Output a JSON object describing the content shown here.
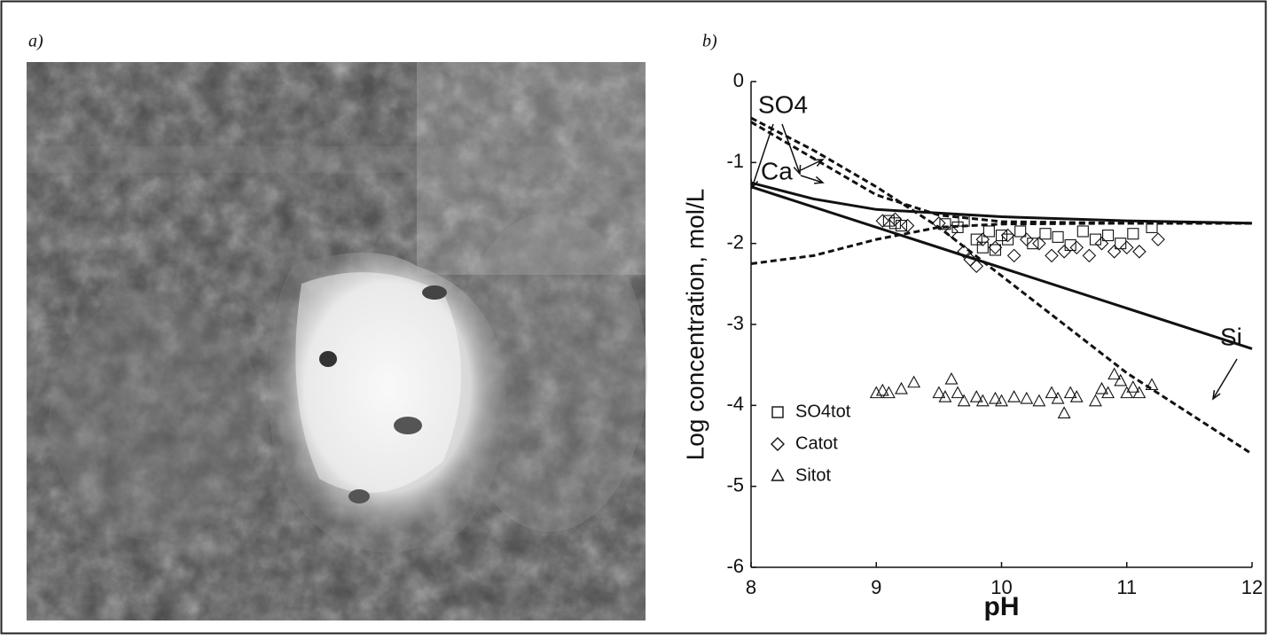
{
  "panel_labels": {
    "a": "a)",
    "b": "b)"
  },
  "chart_data": {
    "type": "scatter",
    "x_label": "pH",
    "y_label": "Log concentration, mol/L",
    "xlim": [
      8,
      12
    ],
    "xticks": [
      8,
      9,
      10,
      11,
      12
    ],
    "ylim": [
      -6,
      0
    ],
    "yticks": [
      -6,
      -5,
      -4,
      -3,
      -2,
      -1,
      0
    ],
    "color": "#111111",
    "legend": "lower left",
    "annotations": [
      "SO4",
      "Ca",
      "Si"
    ],
    "series": [
      {
        "name": "SO4tot",
        "marker": "square",
        "x": [
          9.1,
          9.15,
          9.2,
          9.55,
          9.65,
          9.7,
          9.8,
          9.85,
          9.9,
          9.95,
          10.0,
          10.05,
          10.15,
          10.25,
          10.35,
          10.45,
          10.55,
          10.65,
          10.75,
          10.85,
          10.95,
          11.05,
          11.2
        ],
        "values": [
          -1.72,
          -1.75,
          -1.78,
          -1.76,
          -1.8,
          -1.72,
          -1.95,
          -2.05,
          -1.85,
          -2.08,
          -1.9,
          -1.95,
          -1.85,
          -2.0,
          -1.88,
          -1.92,
          -2.02,
          -1.85,
          -1.95,
          -1.9,
          -2.0,
          -1.88,
          -1.8
        ]
      },
      {
        "name": "Catot",
        "marker": "diamond",
        "x": [
          9.05,
          9.15,
          9.25,
          9.5,
          9.6,
          9.7,
          9.75,
          9.8,
          9.85,
          9.95,
          10.05,
          10.1,
          10.2,
          10.3,
          10.4,
          10.5,
          10.6,
          10.7,
          10.8,
          10.9,
          11.0,
          11.1,
          11.25
        ],
        "values": [
          -1.72,
          -1.7,
          -1.78,
          -1.75,
          -1.85,
          -2.1,
          -2.2,
          -2.28,
          -1.95,
          -2.05,
          -1.9,
          -2.15,
          -1.95,
          -2.0,
          -2.15,
          -2.1,
          -2.05,
          -2.15,
          -2.0,
          -2.1,
          -2.05,
          -2.1,
          -1.95
        ]
      },
      {
        "name": "Sitot",
        "marker": "triangle",
        "x": [
          9.0,
          9.05,
          9.1,
          9.2,
          9.3,
          9.5,
          9.55,
          9.6,
          9.65,
          9.7,
          9.8,
          9.85,
          9.95,
          10.0,
          10.1,
          10.2,
          10.3,
          10.4,
          10.45,
          10.5,
          10.55,
          10.6,
          10.75,
          10.8,
          10.85,
          10.9,
          10.95,
          11.0,
          11.05,
          11.1,
          11.2
        ],
        "values": [
          -3.85,
          -3.82,
          -3.85,
          -3.8,
          -3.72,
          -3.85,
          -3.9,
          -3.68,
          -3.85,
          -3.95,
          -3.9,
          -3.95,
          -3.92,
          -3.95,
          -3.9,
          -3.92,
          -3.95,
          -3.85,
          -3.92,
          -4.1,
          -3.85,
          -3.9,
          -3.95,
          -3.8,
          -3.85,
          -3.62,
          -3.7,
          -3.85,
          -3.78,
          -3.85,
          -3.75
        ]
      },
      {
        "line_style": "dashed",
        "x": [
          8,
          8.5,
          9,
          9.5,
          10,
          11,
          12
        ],
        "values": [
          -0.5,
          -0.95,
          -1.4,
          -1.65,
          -1.73,
          -1.75,
          -1.75
        ]
      },
      {
        "line_style": "dashed",
        "x": [
          8,
          8.5,
          9,
          9.5,
          10,
          10.5,
          11,
          11.5,
          12
        ],
        "values": [
          -0.45,
          -0.85,
          -1.3,
          -1.8,
          -2.4,
          -3.0,
          -3.6,
          -4.1,
          -4.6
        ]
      },
      {
        "line_style": "dashed",
        "x": [
          8,
          8.5,
          9,
          9.5,
          10,
          11,
          12
        ],
        "values": [
          -2.25,
          -2.15,
          -1.95,
          -1.8,
          -1.76,
          -1.75,
          -1.75
        ]
      },
      {
        "line_style": "solid",
        "x": [
          8,
          8.5,
          9,
          10,
          11,
          12
        ],
        "values": [
          -1.25,
          -1.45,
          -1.58,
          -1.67,
          -1.72,
          -1.75
        ]
      },
      {
        "line_style": "solid",
        "x": [
          8,
          12
        ],
        "values": [
          -1.3,
          -3.3
        ]
      }
    ]
  }
}
